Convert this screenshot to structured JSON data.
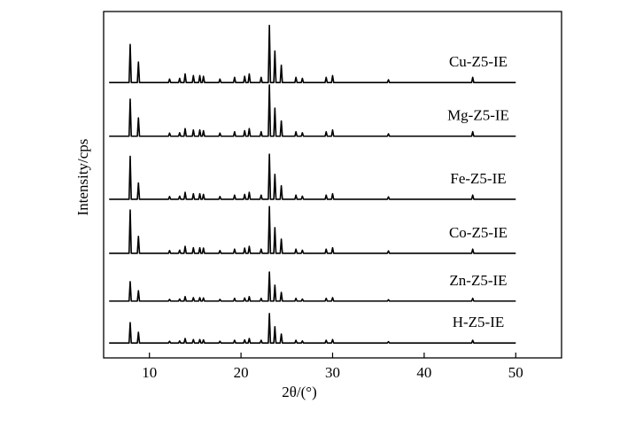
{
  "chart_data": {
    "type": "line",
    "xlabel": "2θ/(°)",
    "ylabel": "Intensity/cps",
    "xlim": [
      5,
      55
    ],
    "ylim": [
      0,
      100
    ],
    "xticks": [
      10,
      20,
      30,
      40,
      50
    ],
    "x": [
      5.6,
      7.78,
      7.9,
      8.02,
      8.68,
      8.8,
      8.92,
      12.08,
      12.2,
      12.32,
      13.18,
      13.3,
      13.42,
      13.78,
      13.9,
      14.02,
      14.68,
      14.8,
      14.92,
      15.38,
      15.5,
      15.62,
      15.78,
      15.9,
      16.02,
      17.58,
      17.7,
      17.82,
      19.18,
      19.3,
      19.42,
      20.28,
      20.4,
      20.52,
      20.78,
      20.9,
      21.02,
      22.08,
      22.2,
      22.32,
      22.98,
      23.1,
      23.22,
      23.58,
      23.7,
      23.82,
      24.28,
      24.4,
      24.52,
      25.88,
      26.0,
      26.12,
      26.58,
      26.7,
      26.82,
      29.18,
      29.3,
      29.42,
      29.88,
      30.0,
      30.12,
      35.98,
      36.1,
      36.22,
      45.18,
      45.3,
      45.42,
      50
    ],
    "series": [
      {
        "name": "Cu-Z5-IE",
        "color": "#000000",
        "values": [
          79.5,
          79.5,
          90.5,
          79.5,
          79.5,
          85.4,
          79.5,
          79.5,
          80.5,
          79.5,
          79.5,
          80.7,
          79.5,
          79.5,
          82.0,
          79.5,
          79.5,
          81.5,
          79.5,
          79.5,
          81.5,
          79.5,
          79.5,
          81.3,
          79.5,
          79.5,
          80.5,
          79.5,
          79.5,
          81.0,
          79.5,
          79.5,
          81.3,
          79.5,
          79.5,
          82.0,
          79.5,
          79.5,
          81.0,
          79.5,
          79.5,
          96.0,
          79.5,
          79.5,
          88.6,
          79.5,
          79.5,
          84.5,
          79.5,
          79.5,
          81.0,
          79.5,
          79.5,
          80.7,
          79.5,
          79.5,
          81.0,
          79.5,
          79.5,
          81.5,
          79.5,
          79.5,
          80.3,
          79.5,
          79.5,
          81.0,
          79.5,
          79.5
        ]
      },
      {
        "name": "Mg-Z5-IE",
        "color": "#000000",
        "values": [
          64,
          64,
          74.7,
          64,
          64,
          69.3,
          64,
          64,
          64.9,
          64,
          64,
          65.0,
          64,
          64,
          66.2,
          64,
          64,
          65.8,
          64,
          64,
          65.8,
          64,
          64,
          65.6,
          64,
          64,
          64.9,
          64,
          64,
          65.3,
          64,
          64,
          65.6,
          64,
          64,
          66.2,
          64,
          64,
          65.3,
          64,
          64,
          78.8,
          64,
          64,
          72.1,
          64,
          64,
          68.4,
          64,
          64,
          65.3,
          64,
          64,
          65.0,
          64,
          64,
          65.3,
          64,
          64,
          65.8,
          64,
          64,
          64.7,
          64,
          64,
          65.3,
          64,
          64
        ]
      },
      {
        "name": "Fe-Z5-IE",
        "color": "#000000",
        "values": [
          45.8,
          45.8,
          58.2,
          45.8,
          45.8,
          50.5,
          45.8,
          45.8,
          46.6,
          45.8,
          45.8,
          46.7,
          45.8,
          45.8,
          47.8,
          45.8,
          45.8,
          47.4,
          45.8,
          45.8,
          47.4,
          45.8,
          45.8,
          47.2,
          45.8,
          45.8,
          46.6,
          45.8,
          45.8,
          47.0,
          45.8,
          45.8,
          47.2,
          45.8,
          45.8,
          47.8,
          45.8,
          45.8,
          47.0,
          45.8,
          45.8,
          58.8,
          45.8,
          45.8,
          53.0,
          45.8,
          45.8,
          49.7,
          45.8,
          45.8,
          47.0,
          45.8,
          45.8,
          46.7,
          45.8,
          45.8,
          47.0,
          45.8,
          45.8,
          47.4,
          45.8,
          45.8,
          46.5,
          45.8,
          45.8,
          47.0,
          45.8,
          45.8
        ]
      },
      {
        "name": "Co-Z5-IE",
        "color": "#000000",
        "values": [
          30.2,
          30.2,
          42.7,
          30.2,
          30.2,
          35.1,
          30.2,
          30.2,
          31.0,
          30.2,
          30.2,
          31.1,
          30.2,
          30.2,
          32.2,
          30.2,
          30.2,
          31.8,
          30.2,
          30.2,
          31.8,
          30.2,
          30.2,
          31.7,
          30.2,
          30.2,
          31.0,
          30.2,
          30.2,
          31.4,
          30.2,
          30.2,
          31.7,
          30.2,
          30.2,
          32.2,
          30.2,
          30.2,
          31.4,
          30.2,
          30.2,
          43.7,
          30.2,
          30.2,
          37.6,
          30.2,
          30.2,
          34.3,
          30.2,
          30.2,
          31.4,
          30.2,
          30.2,
          31.1,
          30.2,
          30.2,
          31.4,
          30.2,
          30.2,
          31.8,
          30.2,
          30.2,
          30.9,
          30.2,
          30.2,
          31.4,
          30.2,
          30.2
        ]
      },
      {
        "name": "Zn-Z5-IE",
        "color": "#000000",
        "values": [
          16.4,
          16.4,
          22.0,
          16.4,
          16.4,
          19.4,
          16.4,
          16.4,
          16.9,
          16.4,
          16.4,
          17.0,
          16.4,
          16.4,
          17.7,
          16.4,
          16.4,
          17.4,
          16.4,
          16.4,
          17.4,
          16.4,
          16.4,
          17.3,
          16.4,
          16.4,
          16.9,
          16.4,
          16.4,
          17.2,
          16.4,
          16.4,
          17.3,
          16.4,
          16.4,
          17.7,
          16.4,
          16.4,
          17.2,
          16.4,
          16.4,
          24.8,
          16.4,
          16.4,
          21.0,
          16.4,
          16.4,
          18.9,
          16.4,
          16.4,
          17.2,
          16.4,
          16.4,
          17.0,
          16.4,
          16.4,
          17.2,
          16.4,
          16.4,
          17.4,
          16.4,
          16.4,
          16.8,
          16.4,
          16.4,
          17.2,
          16.4,
          16.4
        ]
      },
      {
        "name": "H-Z5-IE",
        "color": "#000000",
        "values": [
          4.3,
          4.3,
          10.2,
          4.3,
          4.3,
          7.4,
          4.3,
          4.3,
          4.8,
          4.3,
          4.3,
          4.9,
          4.3,
          4.3,
          5.6,
          4.3,
          4.3,
          5.3,
          4.3,
          4.3,
          5.3,
          4.3,
          4.3,
          5.2,
          4.3,
          4.3,
          4.8,
          4.3,
          4.3,
          5.1,
          4.3,
          4.3,
          5.2,
          4.3,
          4.3,
          5.6,
          4.3,
          4.3,
          5.1,
          4.3,
          4.3,
          12.8,
          4.3,
          4.3,
          9.0,
          4.3,
          4.3,
          6.9,
          4.3,
          4.3,
          5.1,
          4.3,
          4.3,
          4.9,
          4.3,
          4.3,
          5.1,
          4.3,
          4.3,
          5.3,
          4.3,
          4.3,
          4.7,
          4.3,
          4.3,
          5.1,
          4.3,
          4.3
        ]
      }
    ]
  }
}
